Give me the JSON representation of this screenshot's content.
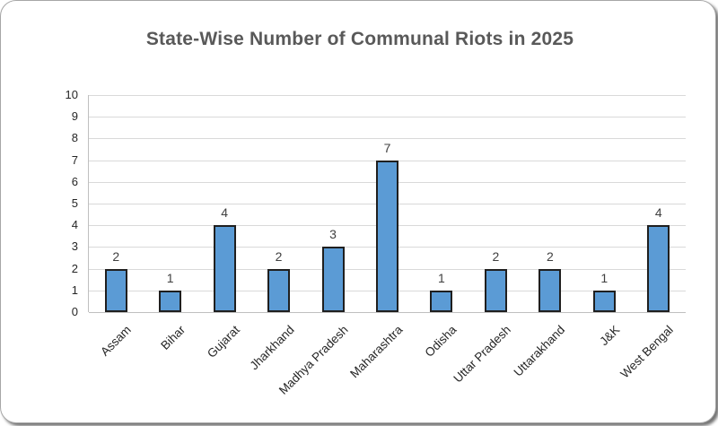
{
  "chart_data": {
    "type": "bar",
    "title": "State-Wise Number of Communal Riots in 2025",
    "categories": [
      "Assam",
      "Bihar",
      "Gujarat",
      "Jharkhand",
      "Madhya Pradesh",
      "Maharashtra",
      "Odisha",
      "Uttar Pradesh",
      "Uttarakhand",
      "J&K",
      "West Bengal"
    ],
    "values": [
      2,
      1,
      4,
      2,
      3,
      7,
      1,
      2,
      2,
      1,
      4
    ],
    "xlabel": "",
    "ylabel": "",
    "ylim": [
      0,
      10
    ],
    "yticks": [
      0,
      1,
      2,
      3,
      4,
      5,
      6,
      7,
      8,
      9,
      10
    ],
    "grid": true,
    "legend": false,
    "data_labels": true,
    "category_label_rotation_deg": 45,
    "colors": {
      "bar_fill": "#5B9BD5",
      "bar_border": "#1F1F1F",
      "gridline": "#D9D9D9",
      "axis_line": "#BFBFBF",
      "title_text": "#595959",
      "tick_text": "#262626",
      "value_label_text": "#404040",
      "frame_background": "#FFFFFF",
      "frame_border": "#A6A6A6"
    }
  }
}
